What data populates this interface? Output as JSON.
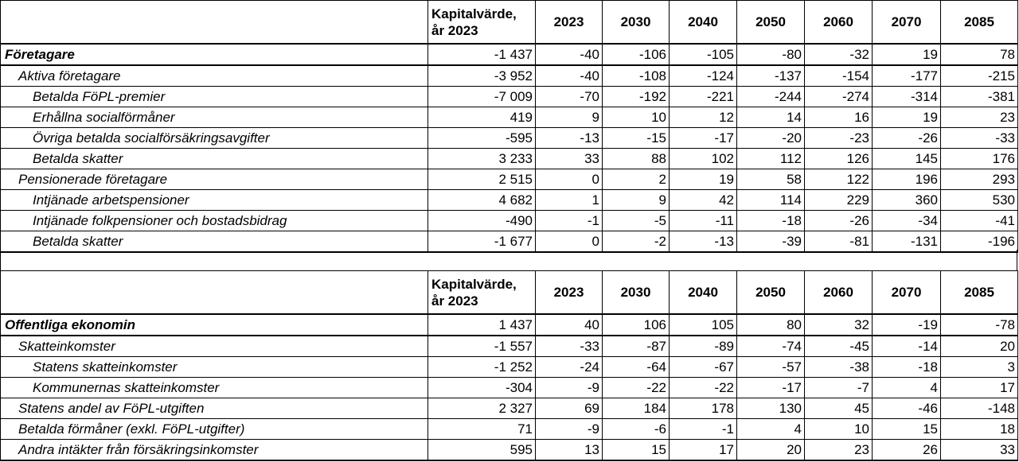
{
  "header": {
    "capital_value": "Kapitalvärde,",
    "capital_value_year": "år 2023",
    "years": [
      "2023",
      "2030",
      "2040",
      "2050",
      "2060",
      "2070",
      "2085"
    ]
  },
  "sections": [
    {
      "rows": [
        {
          "label": "Företagare",
          "level": 0,
          "values": [
            "-1 437",
            "-40",
            "-106",
            "-105",
            "-80",
            "-32",
            "19",
            "78"
          ]
        },
        {
          "label": "Aktiva företagare",
          "level": 1,
          "values": [
            "-3 952",
            "-40",
            "-108",
            "-124",
            "-137",
            "-154",
            "-177",
            "-215"
          ]
        },
        {
          "label": "Betalda FöPL-premier",
          "level": 2,
          "values": [
            "-7 009",
            "-70",
            "-192",
            "-221",
            "-244",
            "-274",
            "-314",
            "-381"
          ]
        },
        {
          "label": "Erhållna socialförmåner",
          "level": 2,
          "values": [
            "419",
            "9",
            "10",
            "12",
            "14",
            "16",
            "19",
            "23"
          ]
        },
        {
          "label": "Övriga betalda socialförsäkringsavgifter",
          "level": 2,
          "values": [
            "-595",
            "-13",
            "-15",
            "-17",
            "-20",
            "-23",
            "-26",
            "-33"
          ]
        },
        {
          "label": "Betalda skatter",
          "level": 2,
          "values": [
            "3 233",
            "33",
            "88",
            "102",
            "112",
            "126",
            "145",
            "176"
          ]
        },
        {
          "label": "Pensionerade företagare",
          "level": 1,
          "values": [
            "2 515",
            "0",
            "2",
            "19",
            "58",
            "122",
            "196",
            "293"
          ]
        },
        {
          "label": "Intjänade arbetspensioner",
          "level": 2,
          "values": [
            "4 682",
            "1",
            "9",
            "42",
            "114",
            "229",
            "360",
            "530"
          ]
        },
        {
          "label": "Intjänade folkpensioner och bostadsbidrag",
          "level": 2,
          "values": [
            "-490",
            "-1",
            "-5",
            "-11",
            "-18",
            "-26",
            "-34",
            "-41"
          ]
        },
        {
          "label": "Betalda skatter",
          "level": 2,
          "values": [
            "-1 677",
            "0",
            "-2",
            "-13",
            "-39",
            "-81",
            "-131",
            "-196"
          ]
        }
      ]
    },
    {
      "rows": [
        {
          "label": "Offentliga ekonomin",
          "level": 0,
          "values": [
            "1 437",
            "40",
            "106",
            "105",
            "80",
            "32",
            "-19",
            "-78"
          ]
        },
        {
          "label": "Skatteinkomster",
          "level": 1,
          "values": [
            "-1 557",
            "-33",
            "-87",
            "-89",
            "-74",
            "-45",
            "-14",
            "20"
          ]
        },
        {
          "label": "Statens skatteinkomster",
          "level": 2,
          "values": [
            "-1 252",
            "-24",
            "-64",
            "-67",
            "-57",
            "-38",
            "-18",
            "3"
          ]
        },
        {
          "label": "Kommunernas skatteinkomster",
          "level": 2,
          "values": [
            "-304",
            "-9",
            "-22",
            "-22",
            "-17",
            "-7",
            "4",
            "17"
          ]
        },
        {
          "label": "Statens andel av FöPL-utgiften",
          "level": 1,
          "values": [
            "2 327",
            "69",
            "184",
            "178",
            "130",
            "45",
            "-46",
            "-148"
          ]
        },
        {
          "label": "Betalda förmåner (exkl. FöPL-utgifter)",
          "level": 1,
          "values": [
            "71",
            "-9",
            "-6",
            "-1",
            "4",
            "10",
            "15",
            "18"
          ]
        },
        {
          "label": "Andra intäkter från försäkringsinkomster",
          "level": 1,
          "values": [
            "595",
            "13",
            "15",
            "17",
            "20",
            "23",
            "26",
            "33"
          ]
        }
      ]
    }
  ]
}
